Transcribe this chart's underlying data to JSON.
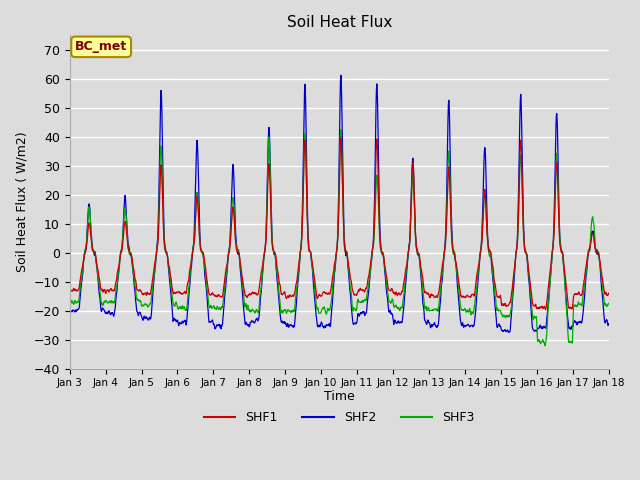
{
  "title": "Soil Heat Flux",
  "ylabel": "Soil Heat Flux ( W/m2)",
  "xlabel": "Time",
  "ylim": [
    -40,
    75
  ],
  "yticks": [
    -40,
    -30,
    -20,
    -10,
    0,
    10,
    20,
    30,
    40,
    50,
    60,
    70
  ],
  "background_color": "#dcdcdc",
  "plot_bg_color": "#dcdcdc",
  "line_colors": {
    "SHF1": "#cc0000",
    "SHF2": "#0000cc",
    "SHF3": "#00aa00"
  },
  "annotation_text": "BC_met",
  "annotation_bg": "#ffff99",
  "annotation_border": "#aa8800",
  "xtick_labels": [
    "Jan 3",
    "Jan 4",
    "Jan 5",
    "Jan 6",
    "Jan 7",
    "Jan 8",
    "Jan 9",
    "Jan 10",
    "Jan 11",
    "Jan 12",
    "Jan 13",
    "Jan 14",
    "Jan 15",
    "Jan 16",
    "Jan 17",
    "Jan 18"
  ],
  "n_days": 15,
  "pts_per_day": 96,
  "night_shf2": -22,
  "night_shf1": -14,
  "night_shf3": -18
}
